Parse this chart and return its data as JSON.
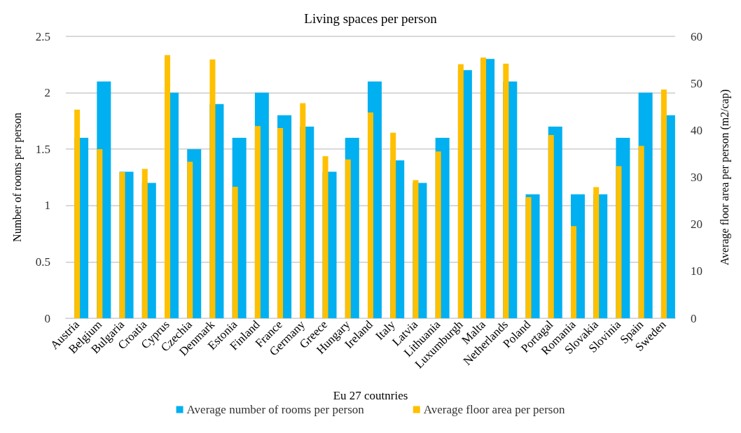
{
  "chart_data": {
    "type": "bar",
    "title": "Living spaces per person",
    "xlabel": "Eu 27 coutnries",
    "ylabel": "Number of rooms per person",
    "y2label": "Average floor area per person (m2/cap)",
    "categories": [
      "Austria",
      "Belgium",
      "Bulgaria",
      "Croatia",
      "Cyprus",
      "Czechia",
      "Denmark",
      "Estonia",
      "Finland",
      "France",
      "Germany",
      "Greece",
      "Hungary",
      "Ireland",
      "Italy",
      "Latvia",
      "Lithuania",
      "Luxumburgh",
      "Malta",
      "Netherlands",
      "Poland",
      "Portagal",
      "Romania",
      "Slovakia",
      "Slovinia",
      "Spain",
      "Sweden"
    ],
    "series": [
      {
        "name": "Average number of rooms per person",
        "color": "#00b0f0",
        "values": [
          1.6,
          2.1,
          1.3,
          1.2,
          2.0,
          1.5,
          1.9,
          1.6,
          2.0,
          1.8,
          1.7,
          1.3,
          1.6,
          2.1,
          1.4,
          1.2,
          1.6,
          2.2,
          2.3,
          2.1,
          1.1,
          1.7,
          1.1,
          1.1,
          1.6,
          2.0,
          1.8
        ]
      },
      {
        "name": "Average floor area per person",
        "color": "#ffc000",
        "axis": "y2",
        "values": [
          44.4,
          36.0,
          31.1,
          31.8,
          56.0,
          33.3,
          55.1,
          28.0,
          40.9,
          40.5,
          45.8,
          34.5,
          33.8,
          43.8,
          39.5,
          29.4,
          35.5,
          54.1,
          55.5,
          54.2,
          25.8,
          39.0,
          19.6,
          27.9,
          32.4,
          36.7,
          48.7
        ]
      }
    ],
    "ylim": [
      0,
      2.5
    ],
    "yticks": [
      0,
      0.5,
      1,
      1.5,
      2,
      2.5
    ],
    "y2lim": [
      0,
      60
    ],
    "y2ticks": [
      0,
      10,
      20,
      30,
      40,
      50,
      60
    ],
    "grid": "y",
    "legend": "bottom"
  }
}
